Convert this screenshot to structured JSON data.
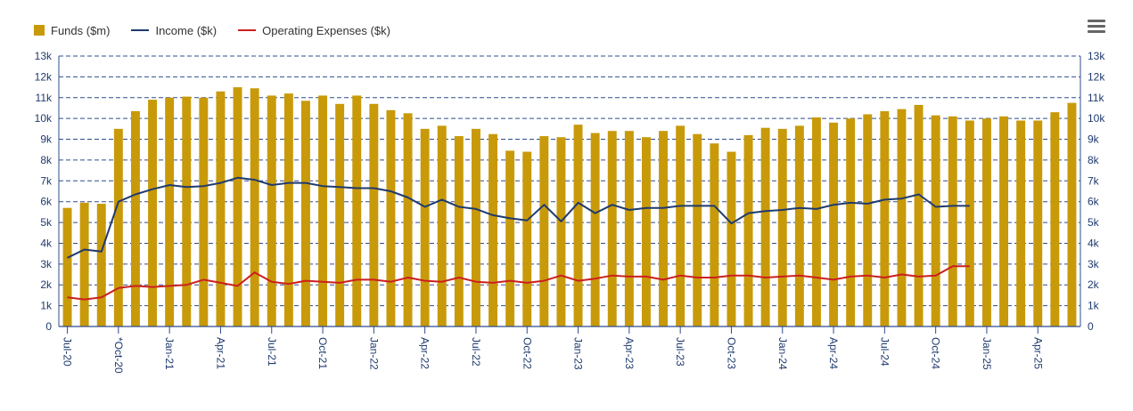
{
  "legend": {
    "funds_label": "Funds ($m)",
    "income_label": "Income ($k)",
    "expenses_label": "Operating Expenses ($k)"
  },
  "menu_icon": "hamburger-menu-icon",
  "colors": {
    "funds": "#C89A0A",
    "income": "#1F3A6E",
    "expenses": "#CC1F1F",
    "grid": "#2F4C8E",
    "axis_text": "#1F3A6E"
  },
  "chart_data": {
    "type": "bar",
    "y_axis": {
      "min": 0,
      "max": 13000,
      "ticks": [
        "0",
        "1k",
        "2k",
        "3k",
        "4k",
        "5k",
        "6k",
        "7k",
        "8k",
        "9k",
        "10k",
        "11k",
        "12k",
        "13k"
      ],
      "mirrored_right": true
    },
    "x_tick_labels": [
      "Jul-20",
      "*Oct-20",
      "Jan-21",
      "Apr-21",
      "Jul-21",
      "Oct-21",
      "Jan-22",
      "Apr-22",
      "Jul-22",
      "Oct-22",
      "Jan-23",
      "Apr-23",
      "Jul-23",
      "Oct-23",
      "Jan-24",
      "Apr-24",
      "Jul-24",
      "Oct-24",
      "Jan-25",
      "Apr-25"
    ],
    "grid": true,
    "legend_position": "top-left",
    "series": [
      {
        "name": "Funds ($m)",
        "type": "bar",
        "values": [
          5700,
          5950,
          5900,
          9500,
          10350,
          10900,
          11000,
          11050,
          11000,
          11300,
          11500,
          11450,
          11100,
          11200,
          10850,
          11100,
          10700,
          11100,
          10700,
          10400,
          10250,
          9500,
          9650,
          9150,
          9500,
          9250,
          8450,
          8400,
          9150,
          9100,
          9700,
          9300,
          9400,
          9400,
          9100,
          9400,
          9650,
          9250,
          8800,
          8400,
          9200,
          9550,
          9500,
          9650,
          10050,
          9800,
          10000,
          10200,
          10350,
          10450,
          10650,
          10150,
          10100,
          9900,
          10000,
          10100,
          9900,
          9900,
          10300,
          10750
        ]
      },
      {
        "name": "Income ($k)",
        "type": "line",
        "values": [
          3300,
          3700,
          3600,
          6000,
          6350,
          6600,
          6800,
          6700,
          6750,
          6900,
          7150,
          7050,
          6800,
          6900,
          6900,
          6750,
          6700,
          6650,
          6650,
          6500,
          6200,
          5750,
          6100,
          5750,
          5650,
          5350,
          5200,
          5100,
          5850,
          5050,
          5950,
          5450,
          5850,
          5600,
          5700,
          5700,
          5800,
          5800,
          5800,
          4950,
          5450,
          5550,
          5600,
          5700,
          5650,
          5850,
          5950,
          5900,
          6100,
          6150,
          6350,
          5750,
          5800,
          5800
        ]
      },
      {
        "name": "Operating Expenses ($k)",
        "type": "line",
        "values": [
          1400,
          1300,
          1400,
          1850,
          1950,
          1900,
          1950,
          2000,
          2250,
          2100,
          1950,
          2600,
          2150,
          2050,
          2200,
          2150,
          2100,
          2250,
          2250,
          2150,
          2350,
          2200,
          2150,
          2350,
          2150,
          2100,
          2200,
          2100,
          2200,
          2450,
          2200,
          2300,
          2450,
          2400,
          2400,
          2250,
          2450,
          2350,
          2350,
          2450,
          2450,
          2350,
          2400,
          2450,
          2350,
          2250,
          2400,
          2450,
          2350,
          2500,
          2400,
          2450,
          2900,
          2900
        ]
      }
    ]
  }
}
